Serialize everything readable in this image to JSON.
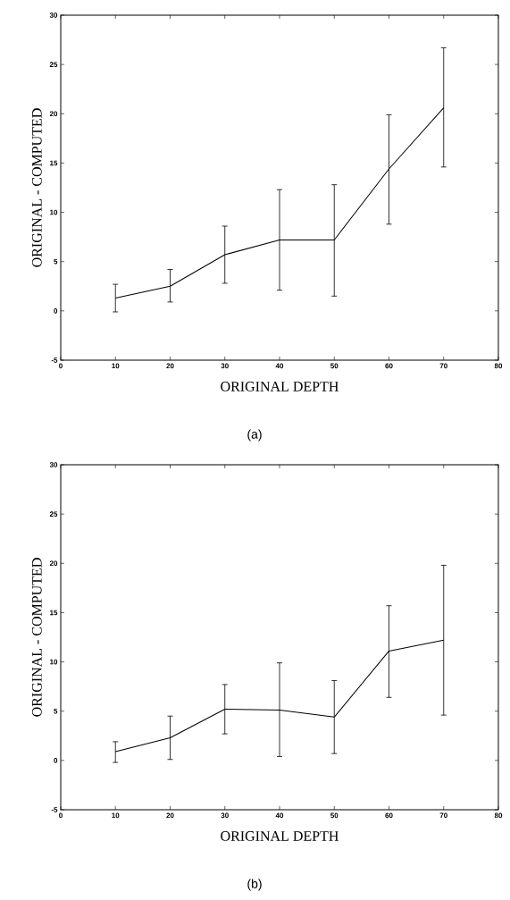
{
  "chart_data": [
    {
      "type": "line",
      "xlabel": "ORIGINAL DEPTH",
      "ylabel": "ORIGINAL - COMPUTED",
      "annotations": [
        "(a)"
      ],
      "x": [
        10,
        20,
        30,
        40,
        50,
        60,
        70
      ],
      "color": "#000000",
      "values": [
        1.3,
        2.5,
        5.7,
        7.2,
        7.2,
        14.4,
        20.6
      ],
      "errors": [
        [
          -0.1,
          2.7
        ],
        [
          0.9,
          4.2
        ],
        [
          2.8,
          8.6
        ],
        [
          2.1,
          12.3
        ],
        [
          1.5,
          12.8
        ],
        [
          8.8,
          19.9
        ],
        [
          14.6,
          26.7
        ]
      ],
      "xlim": [
        0,
        80
      ],
      "ylim": [
        -5,
        30
      ],
      "xticks": [
        0,
        10,
        20,
        30,
        40,
        50,
        60,
        70,
        80
      ],
      "yticks": [
        -5,
        0,
        5,
        10,
        15,
        20,
        25,
        30
      ],
      "grid": false,
      "marker": "none",
      "line_style": "solid"
    },
    {
      "type": "line",
      "xlabel": "ORIGINAL DEPTH",
      "ylabel": "ORIGINAL - COMPUTED",
      "annotations": [
        "(b)"
      ],
      "x": [
        10,
        20,
        30,
        40,
        50,
        60,
        70
      ],
      "color": "#000000",
      "values": [
        0.9,
        2.3,
        5.2,
        5.1,
        4.4,
        11.1,
        12.2
      ],
      "errors": [
        [
          -0.2,
          1.9
        ],
        [
          0.1,
          4.5
        ],
        [
          2.7,
          7.7
        ],
        [
          0.4,
          9.9
        ],
        [
          0.7,
          8.1
        ],
        [
          6.4,
          15.7
        ],
        [
          4.6,
          19.8
        ]
      ],
      "xlim": [
        0,
        80
      ],
      "ylim": [
        -5,
        30
      ],
      "xticks": [
        0,
        10,
        20,
        30,
        40,
        50,
        60,
        70,
        80
      ],
      "yticks": [
        -5,
        0,
        5,
        10,
        15,
        20,
        25,
        30
      ],
      "grid": false,
      "marker": "none",
      "line_style": "solid"
    }
  ]
}
